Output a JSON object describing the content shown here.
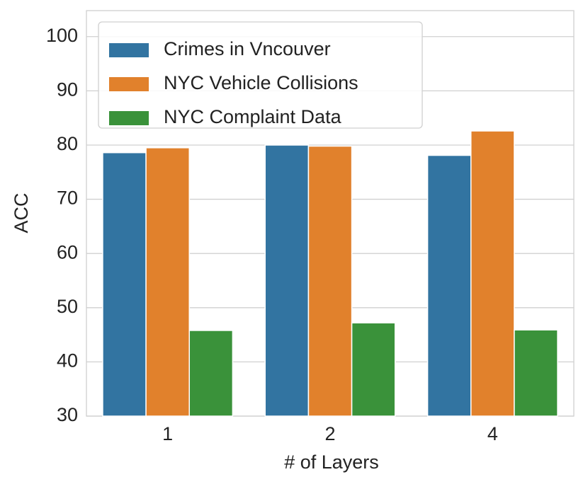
{
  "chart_data": {
    "type": "bar",
    "x_label": "# of Layers",
    "y_label": "ACC",
    "categories": [
      "1",
      "2",
      "4"
    ],
    "series": [
      {
        "name": "Crimes in Vncouver",
        "color": "#3274a1",
        "values": [
          78.6,
          80.0,
          78.1
        ]
      },
      {
        "name": "NYC Vehicle Collisions",
        "color": "#e1812c",
        "values": [
          79.5,
          79.8,
          82.6
        ]
      },
      {
        "name": "NYC Complaint Data",
        "color": "#3a923a",
        "values": [
          45.8,
          47.2,
          45.9
        ]
      }
    ],
    "ylim": [
      30,
      104.8
    ],
    "yticks": [
      30,
      40,
      50,
      60,
      70,
      80,
      90,
      100
    ],
    "grid": true,
    "legend": "upper-left"
  }
}
